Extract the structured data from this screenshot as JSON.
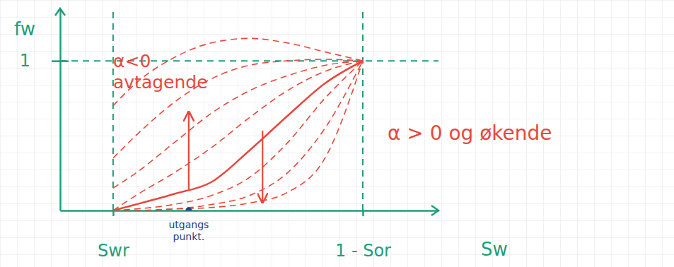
{
  "chart_data": {
    "type": "line",
    "x_label": "Sw",
    "y_label": "fw",
    "x": [
      0.14,
      0.2,
      0.3,
      0.4,
      0.5,
      0.6,
      0.7,
      0.8
    ],
    "xlim": [
      0,
      1
    ],
    "ylim": [
      0,
      1.35
    ],
    "xticks": [
      {
        "value": 0.14,
        "label": "Swr"
      },
      {
        "value": 0.8,
        "label": "1 - Sor"
      }
    ],
    "yticks": [
      {
        "value": 1,
        "label": "1"
      }
    ],
    "grid": true,
    "series": [
      {
        "color": "#e8473c",
        "line_style": "solid",
        "values": [
          0,
          0.04,
          0.11,
          0.19,
          0.4,
          0.63,
          0.85,
          1
        ]
      },
      {
        "color": "#e8473c",
        "line_style": "dashed",
        "values": [
          0,
          0.1,
          0.25,
          0.42,
          0.62,
          0.8,
          0.93,
          1
        ]
      },
      {
        "color": "#e8473c",
        "line_style": "dashed",
        "values": [
          0.15,
          0.25,
          0.45,
          0.65,
          0.8,
          0.9,
          0.97,
          1
        ]
      },
      {
        "color": "#e8473c",
        "line_style": "dashed",
        "values": [
          0.35,
          0.5,
          0.72,
          0.88,
          0.97,
          1,
          1.01,
          1
        ]
      },
      {
        "color": "#e8473c",
        "line_style": "dashed",
        "values": [
          0.7,
          0.85,
          1.02,
          1.12,
          1.15,
          1.12,
          1.06,
          1
        ]
      },
      {
        "color": "#e8473c",
        "line_style": "dashed",
        "values": [
          0,
          0.01,
          0.04,
          0.1,
          0.22,
          0.45,
          0.75,
          1
        ]
      },
      {
        "color": "#e8473c",
        "line_style": "dashed",
        "values": [
          0,
          0,
          0.01,
          0.04,
          0.1,
          0.25,
          0.55,
          1
        ]
      },
      {
        "color": "#e8473c",
        "line_style": "dashed",
        "values": [
          0,
          0,
          0.01,
          0.02,
          0.05,
          0.12,
          0.35,
          1
        ]
      }
    ],
    "annotations": [
      "α<0 avtagende",
      "α > 0 og økende"
    ],
    "start_point": {
      "label": "utgangs punkt.",
      "x": 0.34,
      "y": 0,
      "color": "#2b3a8c",
      "marker": "circle"
    }
  }
}
